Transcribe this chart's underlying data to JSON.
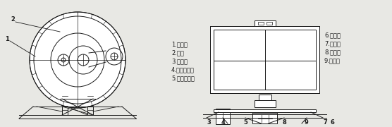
{
  "bg_color": "#e8e8e4",
  "left_labels": [
    "1.清洁槽",
    "2.叶轮",
    "3.电动机",
    "4.电机皮带轮",
    "5.减速机带轮"
  ],
  "right_labels": [
    "6.减速机",
    "7.小齿轮",
    "8.大齿轮",
    "9.轴承座"
  ],
  "label_fontsize": 6.0,
  "line_color": "#1a1a1a",
  "line_width": 0.7
}
